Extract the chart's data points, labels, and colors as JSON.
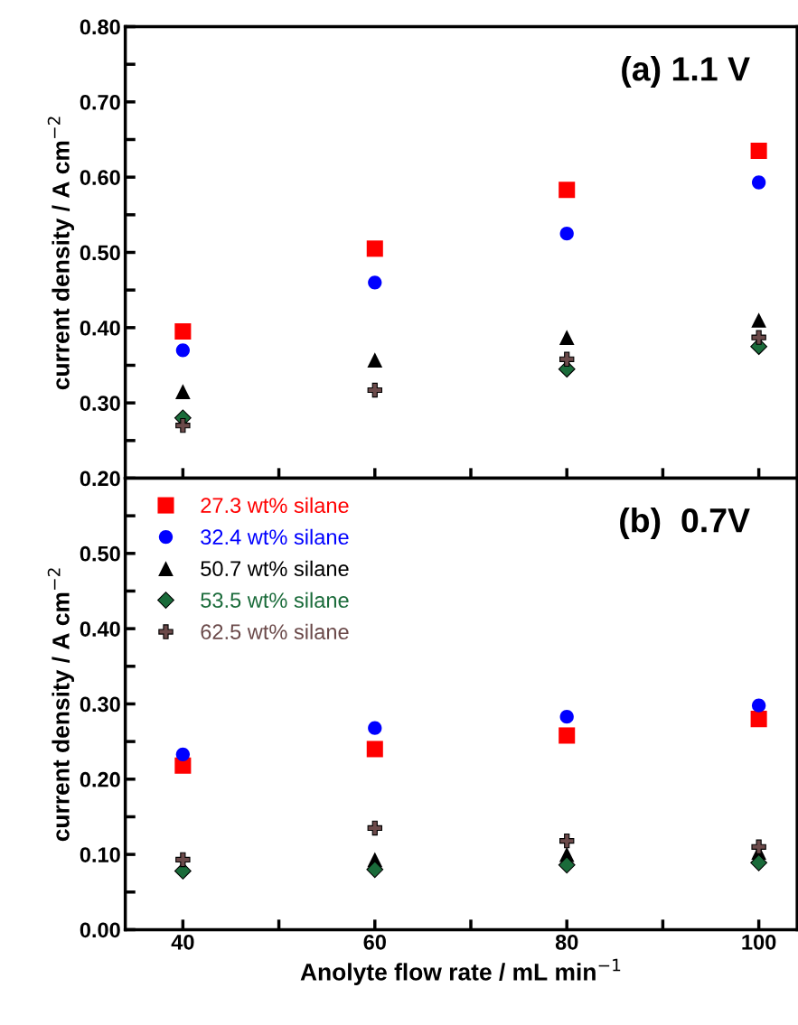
{
  "chart_data": [
    {
      "type": "scatter",
      "x": [
        40,
        60,
        80,
        100
      ],
      "ylabel": "current density / A cm$^{−2}$",
      "annotations": [
        "(a) 1.1 V"
      ],
      "xlim": [
        34,
        104
      ],
      "ylim": [
        0.2,
        0.8
      ],
      "tick_labels": "y",
      "xticks": [
        40,
        {
          "value": 50,
          "label": null
        },
        60,
        {
          "value": 70,
          "label": null
        },
        80,
        {
          "value": 90,
          "label": null
        },
        100
      ],
      "yticks": [
        {
          "value": 0.2,
          "label": "0.20"
        },
        {
          "value": 0.25,
          "label": null
        },
        {
          "value": 0.3,
          "label": "0.30"
        },
        {
          "value": 0.35,
          "label": null
        },
        {
          "value": 0.4,
          "label": "0.40"
        },
        {
          "value": 0.45,
          "label": null
        },
        {
          "value": 0.5,
          "label": "0.50"
        },
        {
          "value": 0.55,
          "label": null
        },
        {
          "value": 0.6,
          "label": "0.60"
        },
        {
          "value": 0.65,
          "label": null
        },
        {
          "value": 0.7,
          "label": "0.70"
        },
        {
          "value": 0.75,
          "label": null
        },
        {
          "value": 0.8,
          "label": "0.80"
        }
      ],
      "series": [
        {
          "color": "#ff0000",
          "marker": "square",
          "values": [
            0.395,
            0.505,
            0.583,
            0.635
          ]
        },
        {
          "color": "#0000ff",
          "marker": "circle",
          "values": [
            0.37,
            0.46,
            0.525,
            0.593
          ]
        },
        {
          "color": "#000000",
          "marker": "triangle",
          "values": [
            0.315,
            0.357,
            0.387,
            0.41
          ]
        },
        {
          "color": "#1a6b3a",
          "marker": "diamond",
          "values": [
            0.28,
            null,
            0.345,
            0.375
          ]
        },
        {
          "color": "#6b4a4a",
          "marker": "cross",
          "values": [
            0.27,
            0.317,
            0.358,
            0.387
          ]
        }
      ]
    },
    {
      "type": "scatter",
      "x": [
        40,
        60,
        80,
        100
      ],
      "xlabel": "Anolyte flow rate / mL min$^{−1}$",
      "ylabel": "current density / A cm$^{−2}$",
      "annotations": [
        "(b)  0.7V"
      ],
      "xlim": [
        34,
        104
      ],
      "ylim": [
        0.0,
        0.6
      ],
      "legend": "top left",
      "xticks": [
        40,
        {
          "value": 50,
          "label": null
        },
        60,
        {
          "value": 70,
          "label": null
        },
        80,
        {
          "value": 90,
          "label": null
        },
        100
      ],
      "yticks": [
        {
          "value": 0.0,
          "label": "0.00"
        },
        {
          "value": 0.05,
          "label": null
        },
        {
          "value": 0.1,
          "label": "0.10"
        },
        {
          "value": 0.15,
          "label": null
        },
        {
          "value": 0.2,
          "label": "0.20"
        },
        {
          "value": 0.25,
          "label": null
        },
        {
          "value": 0.3,
          "label": "0.30"
        },
        {
          "value": 0.35,
          "label": null
        },
        {
          "value": 0.4,
          "label": "0.40"
        },
        {
          "value": 0.45,
          "label": null
        },
        {
          "value": 0.5,
          "label": "0.50"
        },
        {
          "value": 0.55,
          "label": null
        }
      ],
      "series": [
        {
          "name": "27.3 wt% silane",
          "color": "#ff0000",
          "marker": "square",
          "values": [
            0.218,
            0.24,
            0.258,
            0.28
          ]
        },
        {
          "name": "32.4 wt% silane",
          "color": "#0000ff",
          "marker": "circle",
          "values": [
            0.233,
            0.268,
            0.283,
            0.298
          ]
        },
        {
          "name": "50.7 wt% silane",
          "color": "#000000",
          "marker": "triangle",
          "values": [
            null,
            0.093,
            0.1,
            0.103
          ]
        },
        {
          "name": "53.5 wt% silane",
          "color": "#1a6b3a",
          "marker": "diamond",
          "values": [
            0.078,
            0.08,
            0.086,
            0.089
          ]
        },
        {
          "name": "62.5 wt% silane",
          "color": "#6b4a4a",
          "marker": "cross",
          "values": [
            0.093,
            0.135,
            0.118,
            0.11
          ]
        }
      ]
    }
  ]
}
